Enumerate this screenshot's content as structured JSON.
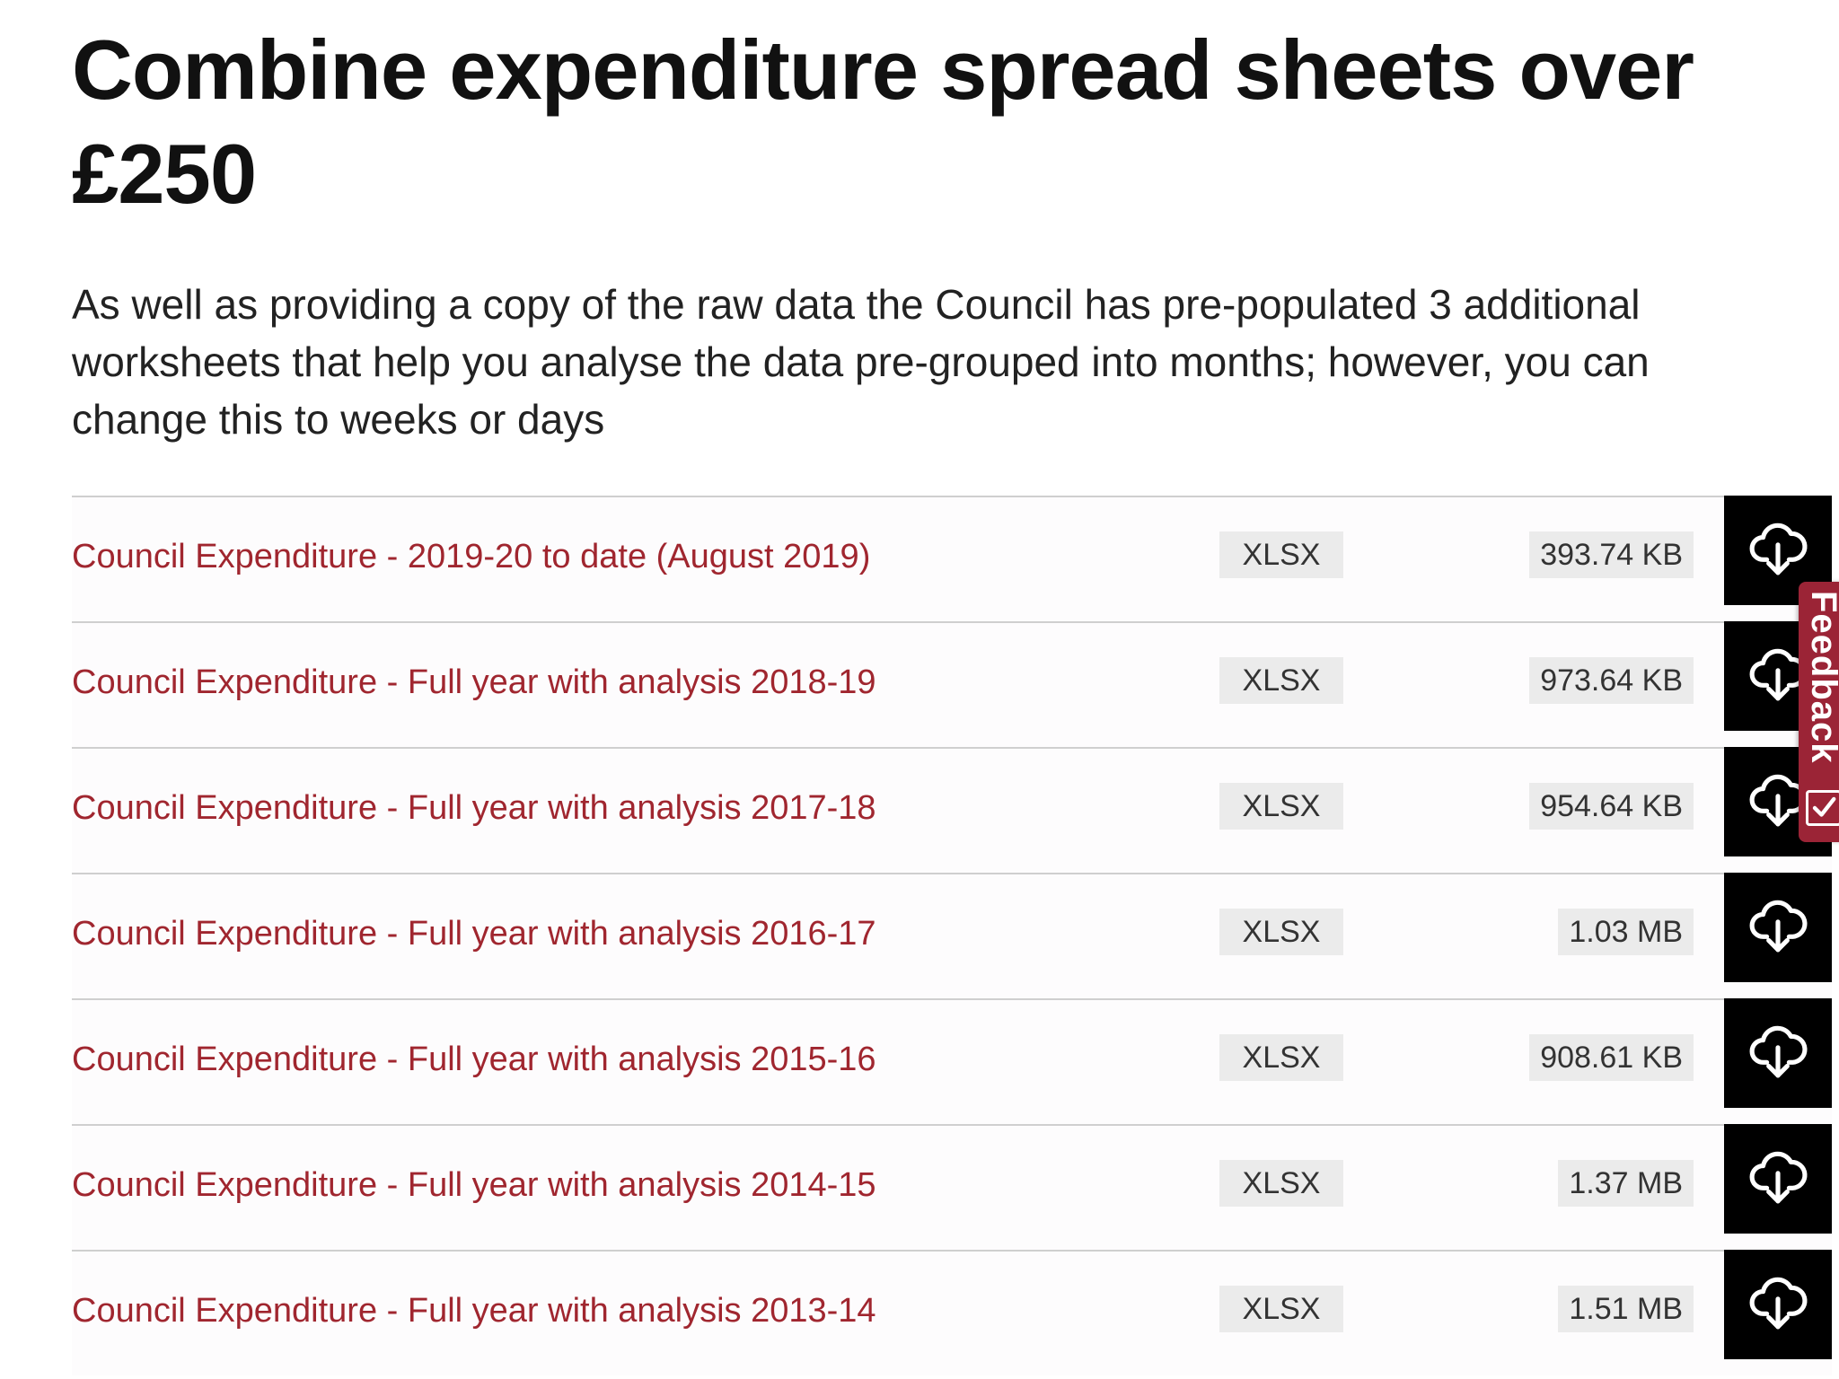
{
  "page": {
    "title": "Combine expenditure spread sheets over £250",
    "intro": "As well as providing a copy of the raw data the Council has pre-populated 3 additional worksheets that help you analyse the data pre-grouped into months; however, you can change this to weeks or days"
  },
  "files": [
    {
      "name": "Council Expenditure - 2019-20 to date (August 2019)",
      "type": "XLSX",
      "size": "393.74 KB"
    },
    {
      "name": "Council Expenditure - Full year with analysis 2018-19",
      "type": "XLSX",
      "size": "973.64 KB"
    },
    {
      "name": "Council Expenditure - Full year with analysis 2017-18",
      "type": "XLSX",
      "size": "954.64 KB"
    },
    {
      "name": "Council Expenditure - Full year with analysis 2016-17",
      "type": "XLSX",
      "size": "1.03 MB"
    },
    {
      "name": "Council Expenditure - Full year with analysis 2015-16",
      "type": "XLSX",
      "size": "908.61 KB"
    },
    {
      "name": "Council Expenditure - Full year with analysis 2014-15",
      "type": "XLSX",
      "size": "1.37 MB"
    },
    {
      "name": "Council Expenditure - Full year with analysis 2013-14",
      "type": "XLSX",
      "size": "1.51 MB"
    }
  ],
  "download_icon": "cloud-download-icon",
  "feedback": {
    "label": "Feedback",
    "icon": "checkbox-check-icon"
  },
  "colors": {
    "link": "#a0262f",
    "feedback_tab": "#9b2436",
    "download_button": "#000000",
    "badge_background": "#ebebeb"
  }
}
